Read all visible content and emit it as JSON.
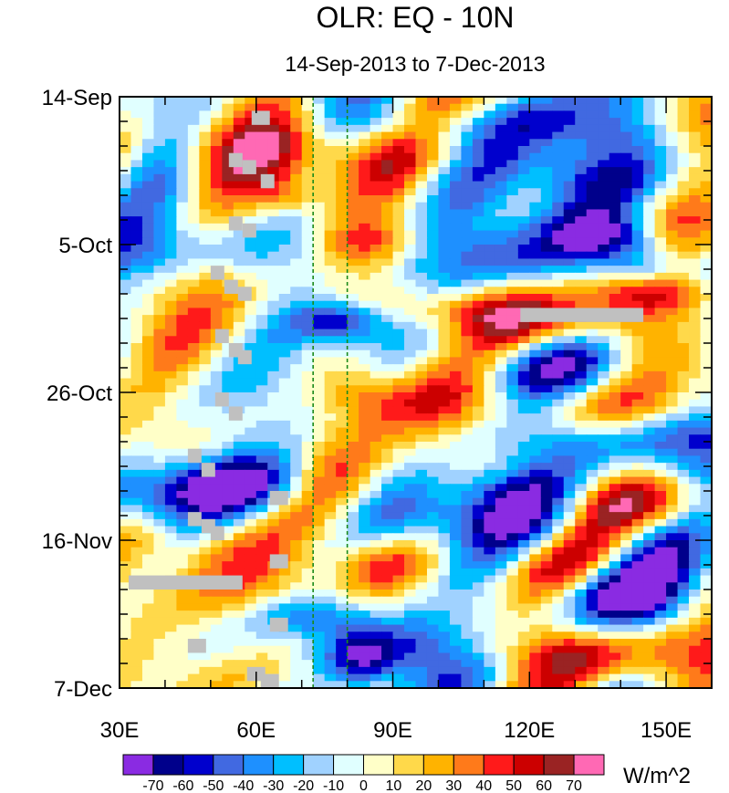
{
  "chart_data": {
    "type": "heatmap",
    "title": "OLR: EQ - 10N",
    "subtitle": "14-Sep-2013 to 7-Dec-2013",
    "x_ticks": [
      {
        "value": 30,
        "label": "30E"
      },
      {
        "value": 60,
        "label": "60E"
      },
      {
        "value": 90,
        "label": "90E"
      },
      {
        "value": 120,
        "label": "120E"
      },
      {
        "value": 150,
        "label": "150E"
      }
    ],
    "xlim": [
      30,
      160
    ],
    "y_ticks": [
      {
        "value": 0,
        "label": "14-Sep"
      },
      {
        "value": 21,
        "label": "5-Oct"
      },
      {
        "value": 42,
        "label": "26-Oct"
      },
      {
        "value": 63,
        "label": "16-Nov"
      },
      {
        "value": 84,
        "label": "7-Dec"
      }
    ],
    "ylim_days": [
      0,
      84
    ],
    "reference_lines_lon": [
      72.5,
      80
    ],
    "colorbar": {
      "units": "W/m^2",
      "levels": [
        -70,
        -60,
        -50,
        -40,
        -30,
        -20,
        -10,
        0,
        10,
        20,
        30,
        40,
        50,
        60,
        70
      ],
      "level_labels": [
        "-70",
        "-60",
        "-50",
        "-40",
        "-30",
        "-20",
        "-10",
        "0",
        "10",
        "20",
        "30",
        "40",
        "50",
        "60",
        "70"
      ],
      "colors": [
        "#8a2be2",
        "#00008b",
        "#0000cd",
        "#4169e1",
        "#1e90ff",
        "#00bfff",
        "#a0d2ff",
        "#e0ffff",
        "#ffffc8",
        "#ffd94a",
        "#ffb300",
        "#ff7a1a",
        "#ff1a1a",
        "#cc0000",
        "#9a2323",
        "#ff69b4"
      ]
    },
    "features": [
      {
        "lon": 72,
        "day": 8,
        "lonw": 22,
        "dayw": 5,
        "value": 48
      },
      {
        "lon": 67,
        "day": 14,
        "lonw": 8,
        "dayw": 3,
        "value": 40
      },
      {
        "lon": 96,
        "day": 5,
        "lonw": 14,
        "dayw": 4,
        "value": -25
      },
      {
        "lon": 56,
        "day": 6,
        "lonw": 20,
        "dayw": 7,
        "value": 18
      },
      {
        "lon": 128,
        "day": 4,
        "lonw": 30,
        "dayw": 4,
        "value": -40
      },
      {
        "lon": 150,
        "day": 2,
        "lonw": 14,
        "dayw": 4,
        "value": 30
      },
      {
        "lon": 122,
        "day": 10,
        "lonw": 24,
        "dayw": 4,
        "value": -35
      },
      {
        "lon": 100,
        "day": 14,
        "lonw": 18,
        "dayw": 4,
        "value": -20
      },
      {
        "lon": 40,
        "day": 12,
        "lonw": 12,
        "dayw": 6,
        "value": -18
      },
      {
        "lon": 140,
        "day": 20,
        "lonw": 12,
        "dayw": 3,
        "value": -55
      },
      {
        "lon": 145,
        "day": 24,
        "lonw": 10,
        "dayw": 3,
        "value": -62
      },
      {
        "lon": 120,
        "day": 23,
        "lonw": 20,
        "dayw": 4,
        "value": -30
      },
      {
        "lon": 85,
        "day": 21,
        "lonw": 10,
        "dayw": 3,
        "value": 30
      },
      {
        "lon": 48,
        "day": 22,
        "lonw": 22,
        "dayw": 4,
        "value": -30
      },
      {
        "lon": 78,
        "day": 32,
        "lonw": 10,
        "dayw": 3,
        "value": -62
      },
      {
        "lon": 102,
        "day": 30,
        "lonw": 16,
        "dayw": 3,
        "value": 30
      },
      {
        "lon": 128,
        "day": 32,
        "lonw": 24,
        "dayw": 4,
        "value": 50
      },
      {
        "lon": 150,
        "day": 28,
        "lonw": 12,
        "dayw": 3,
        "value": 45
      },
      {
        "lon": 130,
        "day": 39,
        "lonw": 20,
        "dayw": 4,
        "value": -38
      },
      {
        "lon": 100,
        "day": 43,
        "lonw": 18,
        "dayw": 5,
        "value": 35
      },
      {
        "lon": 82,
        "day": 42,
        "lonw": 8,
        "dayw": 4,
        "value": 25
      },
      {
        "lon": 45,
        "day": 36,
        "lonw": 20,
        "dayw": 6,
        "value": 8
      },
      {
        "lon": 142,
        "day": 49,
        "lonw": 28,
        "dayw": 4,
        "value": -45
      },
      {
        "lon": 52,
        "day": 55,
        "lonw": 20,
        "dayw": 4,
        "value": -65
      },
      {
        "lon": 40,
        "day": 58,
        "lonw": 12,
        "dayw": 4,
        "value": -30
      },
      {
        "lon": 78,
        "day": 55,
        "lonw": 10,
        "dayw": 5,
        "value": 25
      },
      {
        "lon": 110,
        "day": 56,
        "lonw": 18,
        "dayw": 4,
        "value": -30
      },
      {
        "lon": 150,
        "day": 58,
        "lonw": 12,
        "dayw": 4,
        "value": 40
      },
      {
        "lon": 45,
        "day": 63,
        "lonw": 14,
        "dayw": 4,
        "value": 20
      },
      {
        "lon": 96,
        "day": 60,
        "lonw": 14,
        "dayw": 4,
        "value": -40
      },
      {
        "lon": 128,
        "day": 62,
        "lonw": 16,
        "dayw": 4,
        "value": -40
      },
      {
        "lon": 88,
        "day": 67,
        "lonw": 12,
        "dayw": 4,
        "value": 35
      },
      {
        "lon": 60,
        "day": 70,
        "lonw": 14,
        "dayw": 5,
        "value": 20
      },
      {
        "lon": 140,
        "day": 71,
        "lonw": 14,
        "dayw": 4,
        "value": -40
      },
      {
        "lon": 72,
        "day": 74,
        "lonw": 12,
        "dayw": 3,
        "value": -40
      },
      {
        "lon": 83,
        "day": 80,
        "lonw": 8,
        "dayw": 4,
        "value": -68
      },
      {
        "lon": 95,
        "day": 78,
        "lonw": 10,
        "dayw": 4,
        "value": -45
      },
      {
        "lon": 133,
        "day": 79,
        "lonw": 24,
        "dayw": 4,
        "value": 45
      },
      {
        "lon": 55,
        "day": 82,
        "lonw": 18,
        "dayw": 4,
        "value": 15
      },
      {
        "lon": 110,
        "day": 83,
        "lonw": 18,
        "dayw": 3,
        "value": -20
      }
    ],
    "missing_blocks": [
      {
        "lon0": 59,
        "lon1": 63,
        "day0": 2,
        "day1": 4
      },
      {
        "lon0": 54,
        "lon1": 57,
        "day0": 8,
        "day1": 10
      },
      {
        "lon0": 57,
        "lon1": 60,
        "day0": 9,
        "day1": 11
      },
      {
        "lon0": 61,
        "lon1": 64,
        "day0": 11,
        "day1": 13
      },
      {
        "lon0": 54,
        "lon1": 57,
        "day0": 17,
        "day1": 19
      },
      {
        "lon0": 57,
        "lon1": 60,
        "day0": 18,
        "day1": 20
      },
      {
        "lon0": 50,
        "lon1": 53,
        "day0": 24,
        "day1": 26
      },
      {
        "lon0": 53,
        "lon1": 56,
        "day0": 26,
        "day1": 28
      },
      {
        "lon0": 56,
        "lon1": 59,
        "day0": 27,
        "day1": 29
      },
      {
        "lon0": 51,
        "lon1": 54,
        "day0": 33,
        "day1": 35
      },
      {
        "lon0": 54,
        "lon1": 57,
        "day0": 35,
        "day1": 37
      },
      {
        "lon0": 56,
        "lon1": 59,
        "day0": 36,
        "day1": 38
      },
      {
        "lon0": 51,
        "lon1": 54,
        "day0": 42,
        "day1": 44
      },
      {
        "lon0": 54,
        "lon1": 57,
        "day0": 44,
        "day1": 46
      },
      {
        "lon0": 45,
        "lon1": 48,
        "day0": 50,
        "day1": 52
      },
      {
        "lon0": 48,
        "lon1": 51,
        "day0": 52,
        "day1": 54
      },
      {
        "lon0": 63,
        "lon1": 67,
        "day0": 56,
        "day1": 58
      },
      {
        "lon0": 45,
        "lon1": 48,
        "day0": 59,
        "day1": 61
      },
      {
        "lon0": 48,
        "lon1": 51,
        "day0": 60,
        "day1": 62
      },
      {
        "lon0": 50,
        "lon1": 53,
        "day0": 61,
        "day1": 63
      },
      {
        "lon0": 63,
        "lon1": 67,
        "day0": 65,
        "day1": 67
      },
      {
        "lon0": 32,
        "lon1": 57,
        "day0": 68,
        "day1": 70
      },
      {
        "lon0": 63,
        "lon1": 67,
        "day0": 74,
        "day1": 76
      },
      {
        "lon0": 45,
        "lon1": 49,
        "day0": 77,
        "day1": 79
      },
      {
        "lon0": 58,
        "lon1": 62,
        "day0": 81,
        "day1": 83
      },
      {
        "lon0": 61,
        "lon1": 65,
        "day0": 82,
        "day1": 84
      },
      {
        "lon0": 118,
        "lon1": 145,
        "day0": 30,
        "day1": 32
      }
    ]
  }
}
